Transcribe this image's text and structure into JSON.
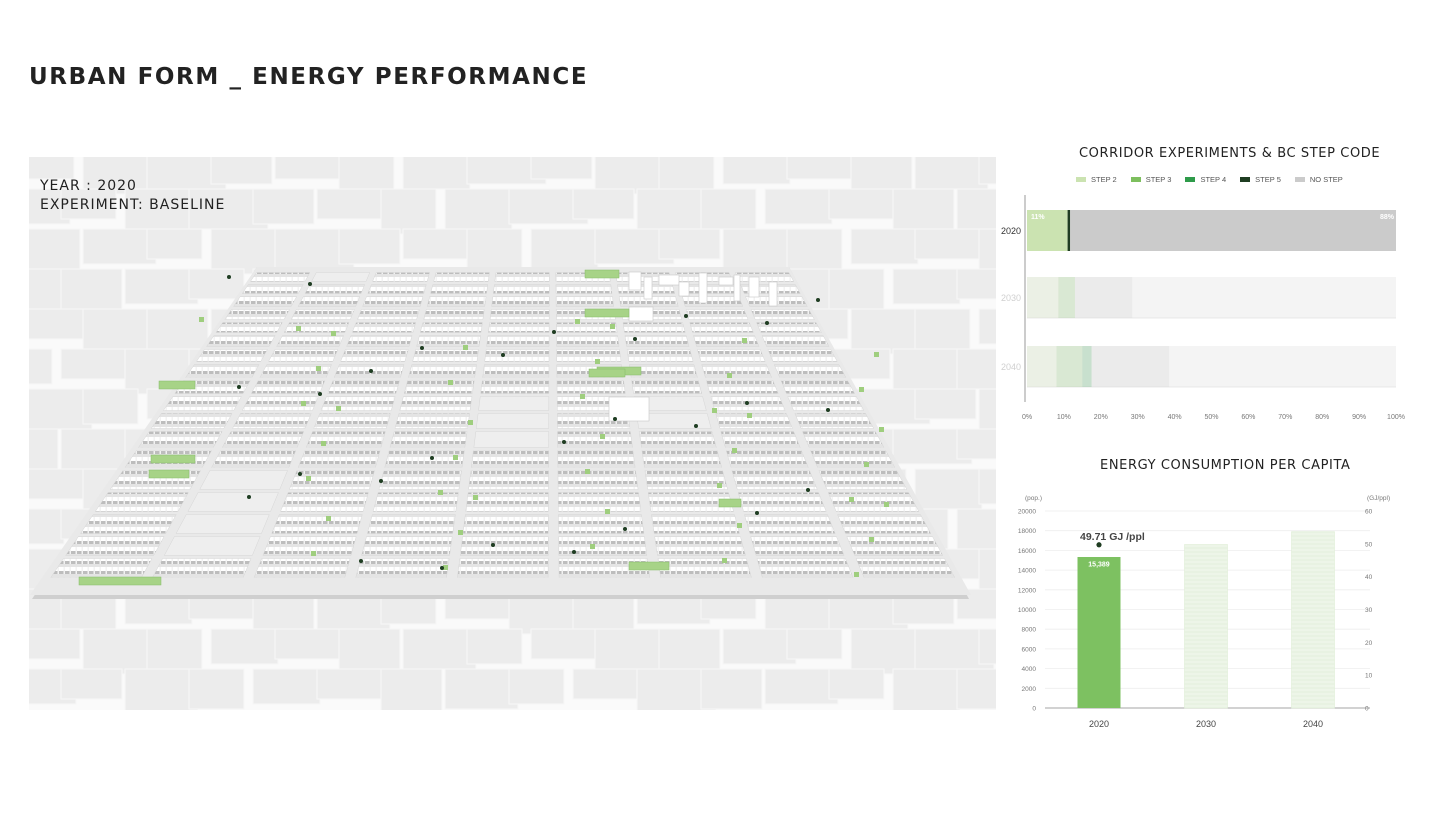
{
  "header": {
    "title": "URBAN FORM _ ENERGY PERFORMANCE"
  },
  "map": {
    "year_label": "YEAR : 2020",
    "experiment_label": "EXPERIMENT: BASELINE"
  },
  "colors": {
    "step2": "#cbe3b1",
    "step3": "#7dbf5e",
    "step4": "#2e9b4a",
    "step5": "#1f3d22",
    "no_step": "#cbcbcb",
    "bar_active": "#7dc161",
    "bar_faded": "#e6f1df"
  },
  "chart_data": [
    {
      "type": "bar",
      "orientation": "horizontal",
      "stacked": true,
      "title": "CORRIDOR EXPERIMENTS & BC STEP CODE",
      "categories": [
        "2020",
        "2030",
        "2040"
      ],
      "active_category": "2020",
      "legend": [
        {
          "name": "STEP 2",
          "color": "#cbe3b1"
        },
        {
          "name": "STEP 3",
          "color": "#7dbf5e"
        },
        {
          "name": "STEP 4",
          "color": "#2e9b4a"
        },
        {
          "name": "STEP 5",
          "color": "#1f3d22"
        },
        {
          "name": "NO STEP",
          "color": "#cbcbcb"
        }
      ],
      "series": [
        {
          "name": "STEP 2",
          "values": [
            11,
            8.5,
            8
          ]
        },
        {
          "name": "STEP 3",
          "values": [
            0,
            4.5,
            7
          ]
        },
        {
          "name": "STEP 4",
          "values": [
            0,
            0,
            2.5
          ]
        },
        {
          "name": "STEP 5",
          "values": [
            0.7,
            0,
            0
          ]
        },
        {
          "name": "NO STEP",
          "values": [
            88.3,
            15.5,
            21
          ]
        }
      ],
      "data_labels": {
        "2020": [
          "11%",
          "88%"
        ]
      },
      "xlim": [
        0,
        100
      ],
      "xticks": [
        "0%",
        "10%",
        "20%",
        "30%",
        "40%",
        "50%",
        "60%",
        "70%",
        "80%",
        "90%",
        "100%"
      ]
    },
    {
      "type": "bar",
      "title": "ENERGY CONSUMPTION PER CAPITA",
      "categories": [
        "2020",
        "2030",
        "2040"
      ],
      "active_category": "2020",
      "values": [
        15389,
        16600,
        17900
      ],
      "bar_labels": [
        "15,389",
        "",
        ""
      ],
      "ylabel": "(pop.)",
      "y2label": "(GJ/ppl)",
      "ylim": [
        0,
        20000
      ],
      "yticks": [
        "0",
        "2000",
        "4000",
        "6000",
        "8000",
        "10000",
        "12000",
        "14000",
        "16000",
        "18000",
        "20000"
      ],
      "y2lim": [
        0,
        60
      ],
      "y2ticks": [
        "0",
        "10",
        "20",
        "30",
        "40",
        "50",
        "60"
      ],
      "points": [
        {
          "category": "2020",
          "value": 49.71,
          "label": "49.71 GJ /ppl"
        }
      ]
    }
  ]
}
